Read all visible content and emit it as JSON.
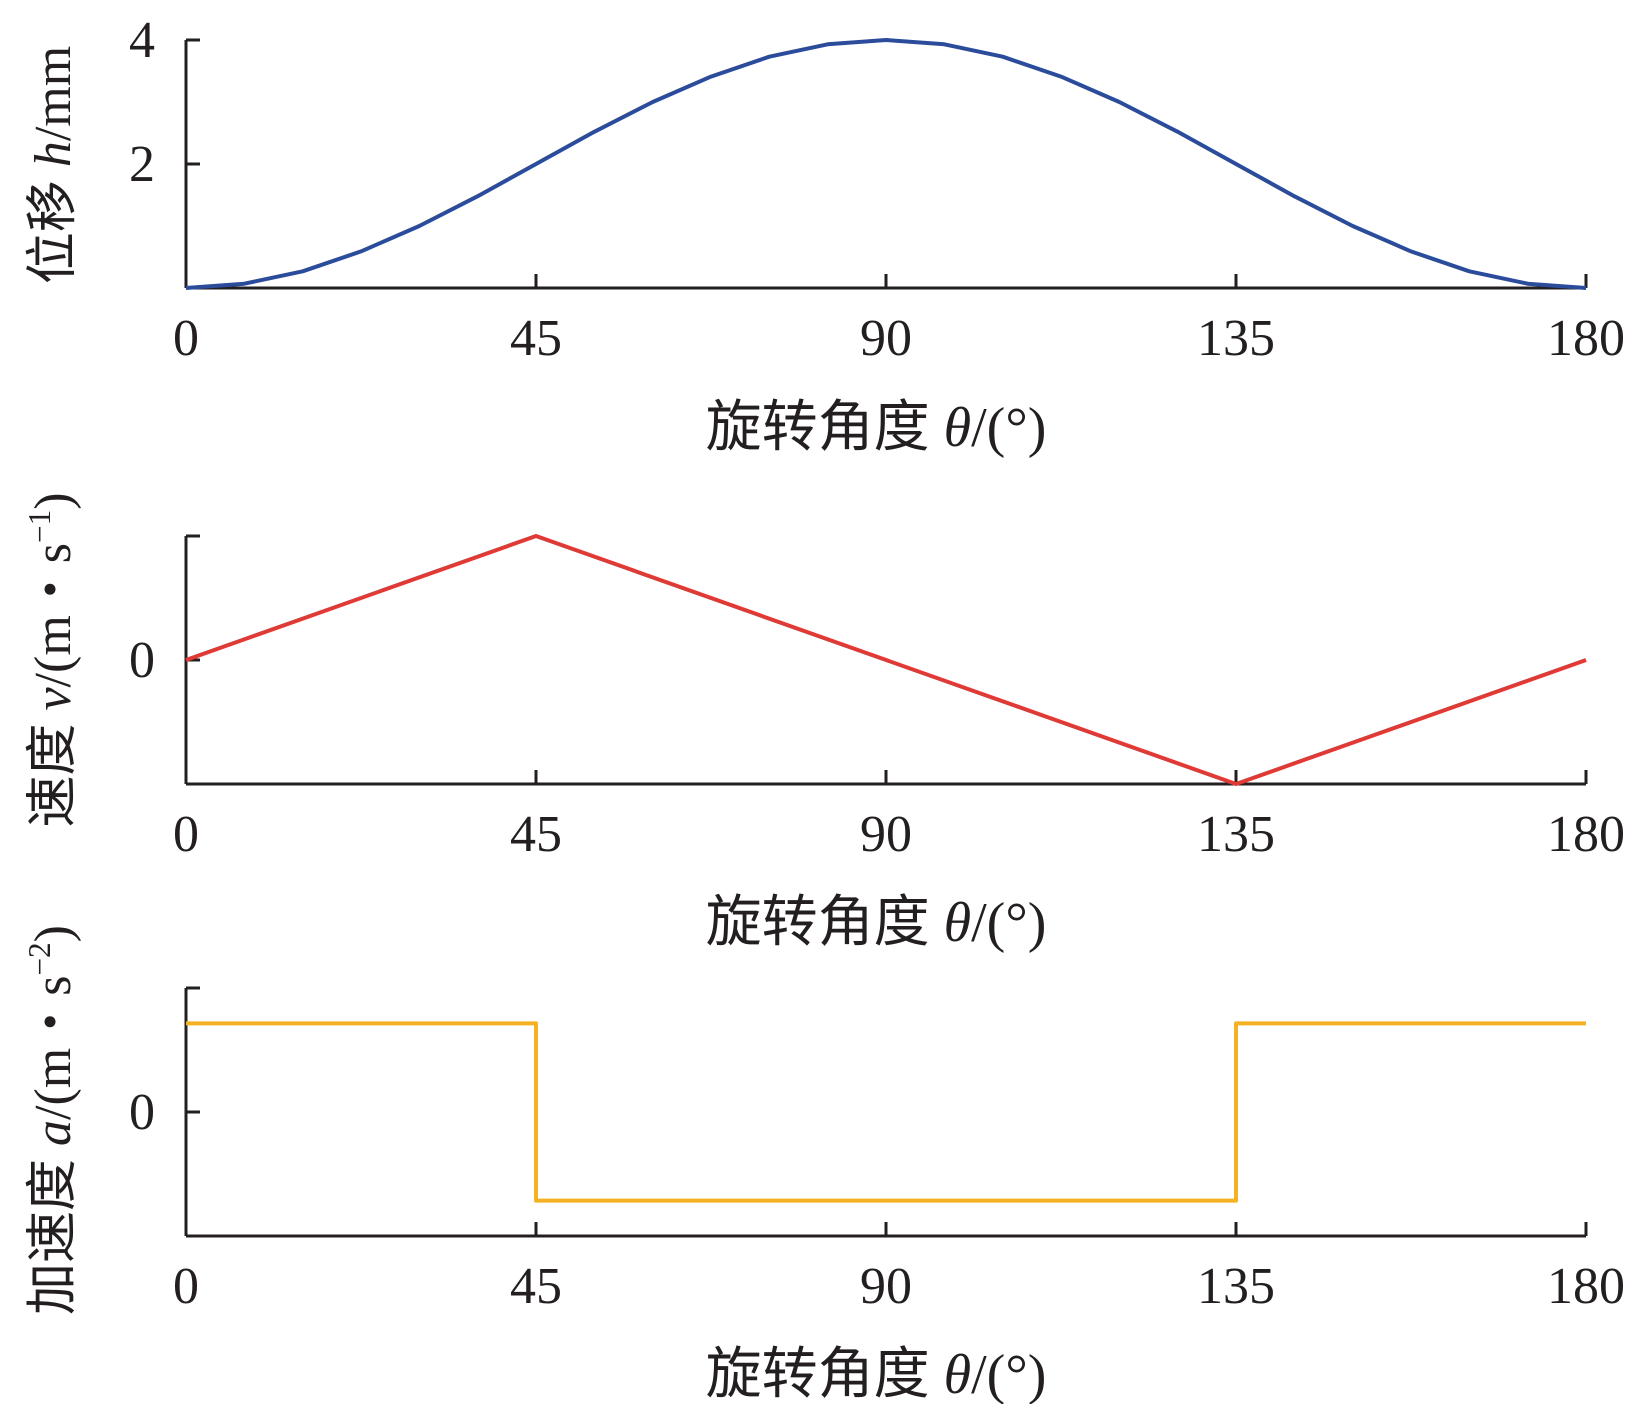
{
  "chart_data": [
    {
      "type": "line",
      "ylabel": {
        "prefix": "位移",
        "var": "h",
        "unit": "/mm"
      },
      "xlabel": {
        "prefix": "旋转角度",
        "var": "θ",
        "unit": "/(°)"
      },
      "xlim": [
        0,
        180
      ],
      "ylim": [
        0,
        4
      ],
      "xticks": [
        0,
        45,
        90,
        135,
        180
      ],
      "xtick_labels": [
        "0",
        "45",
        "90",
        "135",
        "180"
      ],
      "yticks": [
        2,
        4
      ],
      "ytick_labels": [
        "2",
        "4"
      ],
      "grid": false,
      "series": [
        {
          "color": "#2b4c9b",
          "x": [
            0,
            7.5,
            15,
            22.5,
            30,
            37.5,
            45,
            52.5,
            60,
            67.5,
            75,
            82.5,
            90,
            97.5,
            105,
            112.5,
            120,
            127.5,
            135,
            142.5,
            150,
            157.5,
            165,
            172.5,
            180
          ],
          "y": [
            0,
            0.07,
            0.27,
            0.59,
            1.0,
            1.48,
            2.0,
            2.52,
            3.0,
            3.41,
            3.73,
            3.93,
            4.0,
            3.93,
            3.73,
            3.41,
            3.0,
            2.52,
            2.0,
            1.48,
            1.0,
            0.59,
            0.27,
            0.07,
            0
          ]
        }
      ]
    },
    {
      "type": "line",
      "ylabel": {
        "prefix": "速度",
        "var": "v",
        "unit": "/(m・s",
        "sup": "−1",
        "close": ")"
      },
      "xlabel": {
        "prefix": "旋转角度",
        "var": "θ",
        "unit": "/(°)"
      },
      "xlim": [
        0,
        180
      ],
      "ylim": [
        -1,
        1
      ],
      "xticks": [
        0,
        45,
        90,
        135,
        180
      ],
      "xtick_labels": [
        "0",
        "45",
        "90",
        "135",
        "180"
      ],
      "yticks": [
        -1,
        0,
        1
      ],
      "ytick_labels": [
        "",
        "0",
        ""
      ],
      "grid": false,
      "series": [
        {
          "color": "#e03a36",
          "x": [
            0,
            45,
            135,
            180
          ],
          "y": [
            0,
            1,
            -1,
            0
          ]
        }
      ]
    },
    {
      "type": "line",
      "ylabel": {
        "prefix": "加速度",
        "var": "a",
        "unit": "/(m・s",
        "sup": "−2",
        "close": ")"
      },
      "xlabel": {
        "prefix": "旋转角度",
        "var": "θ",
        "unit": "/(°)"
      },
      "xlim": [
        0,
        180
      ],
      "ylim": [
        -1.4,
        1.4
      ],
      "xticks": [
        0,
        45,
        90,
        135,
        180
      ],
      "xtick_labels": [
        "0",
        "45",
        "90",
        "135",
        "180"
      ],
      "yticks": [
        0,
        1.4
      ],
      "ytick_labels": [
        "0",
        ""
      ],
      "grid": false,
      "series": [
        {
          "color": "#f4b223",
          "x": [
            0,
            45,
            45,
            135,
            135,
            180
          ],
          "y": [
            1,
            1,
            -1,
            -1,
            1,
            1
          ]
        }
      ]
    }
  ]
}
